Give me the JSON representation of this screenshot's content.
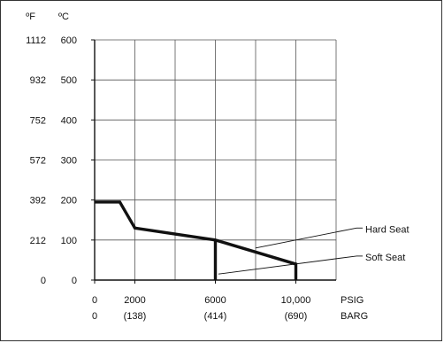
{
  "chart_data": {
    "type": "line",
    "title": "",
    "xlabel": "",
    "ylabel": "",
    "xlim": [
      0,
      12000
    ],
    "ylim": [
      0,
      600
    ],
    "grid": true,
    "x_unit_primary": "PSIG",
    "x_unit_secondary": "BARG",
    "y_unit_left": "ºF",
    "y_unit_right": "ºC",
    "x_ticks": [
      {
        "value": 0,
        "label": "0",
        "sublabel": "0"
      },
      {
        "value": 2000,
        "label": "2000",
        "sublabel": "(138)"
      },
      {
        "value": 6000,
        "label": "6000",
        "sublabel": "(414)"
      },
      {
        "value": 10000,
        "label": "10,000",
        "sublabel": "(690)"
      }
    ],
    "y_ticks": [
      {
        "value": 0,
        "label_f": "0",
        "label_c": "0"
      },
      {
        "value": 100,
        "label_f": "212",
        "label_c": "100"
      },
      {
        "value": 200,
        "label_f": "392",
        "label_c": "200"
      },
      {
        "value": 300,
        "label_f": "572",
        "label_c": "300"
      },
      {
        "value": 400,
        "label_f": "752",
        "label_c": "400"
      },
      {
        "value": 500,
        "label_f": "932",
        "label_c": "500"
      },
      {
        "value": 600,
        "label_f": "1112",
        "label_c": "600"
      }
    ],
    "series": [
      {
        "name": "Hard Seat",
        "x": [
          0,
          1250,
          2000,
          6000,
          10000,
          10000
        ],
        "y": [
          195,
          195,
          130,
          100,
          40,
          0
        ]
      },
      {
        "name": "Soft Seat",
        "x": [
          6000,
          6000
        ],
        "y": [
          100,
          0
        ]
      }
    ],
    "annotations": [
      {
        "text": "Hard Seat",
        "x": 8000,
        "y": 80,
        "label_x": 11800,
        "label_y": 130
      },
      {
        "text": "Soft Seat",
        "x": 6150,
        "y": 15,
        "label_x": 11800,
        "label_y": 60
      }
    ]
  }
}
